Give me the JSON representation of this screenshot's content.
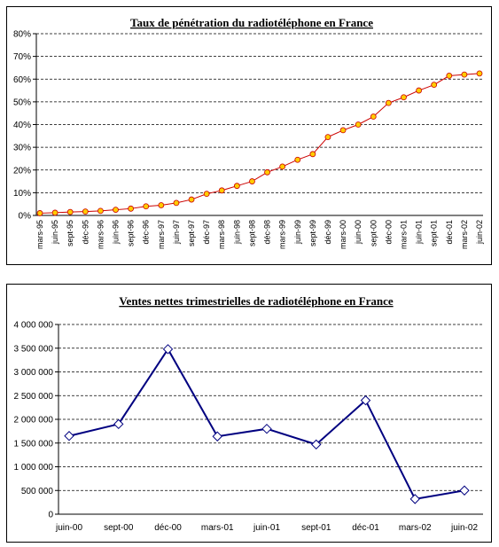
{
  "chart_data": [
    {
      "type": "line",
      "title": "Taux de pénétration du radiotéléphone en France",
      "categories": [
        "mars-95",
        "juin-95",
        "sept-95",
        "déc-95",
        "mars-96",
        "juin-96",
        "sept-96",
        "déc-96",
        "mars-97",
        "juin-97",
        "sept-97",
        "déc-97",
        "mars-98",
        "juin-98",
        "sept-98",
        "déc-98",
        "mars-99",
        "juin-99",
        "sept-99",
        "déc-99",
        "mars-00",
        "juin-00",
        "sept-00",
        "déc-00",
        "mars-01",
        "juin-01",
        "sept-01",
        "déc-01",
        "mars-02",
        "juin-02"
      ],
      "series": [
        {
          "color": "#cc0000",
          "marker_color": "#ffcc00",
          "values": [
            1,
            1.2,
            1.5,
            1.7,
            2,
            2.5,
            3,
            4,
            4.5,
            5.5,
            7,
            9.5,
            11,
            13,
            15,
            19,
            21.5,
            24.5,
            27,
            34.5,
            37.5,
            40,
            43.5,
            49.5,
            52,
            55,
            57.5,
            61.5,
            62,
            62.5
          ]
        }
      ],
      "ylim": [
        0,
        80
      ],
      "yticks": [
        {
          "value": 0,
          "label": "0%"
        },
        {
          "value": 10,
          "label": "10%"
        },
        {
          "value": 20,
          "label": "20%"
        },
        {
          "value": 30,
          "label": "30%"
        },
        {
          "value": 40,
          "label": "40%"
        },
        {
          "value": 50,
          "label": "50%"
        },
        {
          "value": 60,
          "label": "60%"
        },
        {
          "value": 70,
          "label": "70%"
        },
        {
          "value": 80,
          "label": "80%"
        }
      ],
      "grid": true
    },
    {
      "type": "line",
      "title": "Ventes nettes trimestrielles de radiotéléphone en France",
      "categories": [
        "juin-00",
        "sept-00",
        "déc-00",
        "mars-01",
        "juin-01",
        "sept-01",
        "déc-01",
        "mars-02",
        "juin-02"
      ],
      "series": [
        {
          "color": "#000080",
          "marker_color": "#ffffff",
          "values": [
            1650000,
            1900000,
            3480000,
            1640000,
            1800000,
            1470000,
            2400000,
            320000,
            500000
          ]
        }
      ],
      "ylim": [
        0,
        4000000
      ],
      "yticks": [
        0,
        {
          "value": 500000,
          "label": "500 000"
        },
        {
          "value": 1000000,
          "label": "1 000 000"
        },
        {
          "value": 1500000,
          "label": "1 500 000"
        },
        {
          "value": 2000000,
          "label": "2 000 000"
        },
        {
          "value": 2500000,
          "label": "2 500 000"
        },
        {
          "value": 3000000,
          "label": "3 000 000"
        },
        {
          "value": 3500000,
          "label": "3 500 000"
        },
        {
          "value": 4000000,
          "label": "4 000 000"
        }
      ],
      "grid": true
    }
  ]
}
